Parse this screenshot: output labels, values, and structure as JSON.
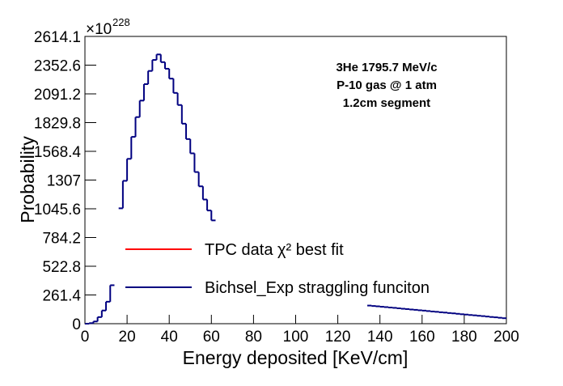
{
  "chart_data": {
    "type": "histogram",
    "xlabel": "Energy deposited [KeV/cm]",
    "ylabel": "Probability",
    "y_multiplier": {
      "base": "×10",
      "exponent": "228"
    },
    "annotations": [
      "3He 1795.7 MeV/c",
      "P-10 gas @ 1 atm",
      "1.2cm segment"
    ],
    "xlim": [
      0,
      200
    ],
    "xticks": [
      0,
      20,
      40,
      60,
      80,
      100,
      120,
      140,
      160,
      180,
      200
    ],
    "ylim": [
      0,
      2614.1
    ],
    "yticks": [
      0,
      261.4,
      522.8,
      784.2,
      1045.6,
      1307,
      1568.4,
      1829.8,
      2091.2,
      2352.6,
      2614.1
    ],
    "legend": "center-left",
    "bins": [
      0,
      2,
      4,
      6,
      8,
      10,
      12,
      14,
      16,
      18,
      20,
      22,
      24,
      26,
      28,
      30,
      32,
      34,
      36,
      38,
      40,
      42,
      44,
      46,
      48,
      50,
      52,
      54,
      56,
      58,
      60,
      62,
      64,
      66,
      68,
      70,
      72,
      74,
      76,
      78,
      80,
      82,
      84,
      86,
      88,
      90,
      92,
      94,
      96,
      98,
      100,
      102,
      104,
      106,
      108,
      110,
      112,
      114,
      116,
      118,
      120,
      122,
      124,
      126,
      128,
      130,
      132,
      134,
      136,
      138,
      140,
      142,
      144,
      146,
      148,
      150,
      152,
      154,
      156,
      158,
      160,
      162,
      164,
      166,
      168,
      170,
      172,
      174,
      176,
      178,
      180,
      182,
      184,
      186,
      188,
      190,
      192,
      194,
      196,
      198,
      200
    ],
    "series": [
      {
        "name": "TPC data χ² best fit",
        "color": "#ff0000"
      },
      {
        "name": "Bichsel_Exp straggling funciton",
        "color": "#000080",
        "counts": [
          0,
          5,
          20,
          60,
          120,
          200,
          350,
          null,
          1050,
          1300,
          1500,
          1700,
          1880,
          2030,
          2180,
          2300,
          2400,
          2450,
          2380,
          2320,
          2230,
          2100,
          1990,
          1820,
          1680,
          1550,
          1380,
          1250,
          1130,
          1030,
          940,
          null,
          null,
          null,
          null,
          null,
          null,
          null,
          null,
          null,
          null,
          null,
          null,
          null,
          null,
          null,
          null,
          null,
          null,
          null,
          null,
          null,
          null,
          null,
          null,
          null,
          null,
          null,
          null,
          null,
          null,
          null,
          null,
          null,
          null,
          null,
          null,
          165,
          161,
          158,
          154,
          151,
          147,
          144,
          140,
          136,
          133,
          129,
          126,
          122,
          119,
          115,
          111,
          108,
          104,
          101,
          97,
          94,
          90,
          86,
          83,
          79,
          76,
          72,
          69,
          65,
          61,
          58,
          54,
          50
        ]
      }
    ]
  }
}
